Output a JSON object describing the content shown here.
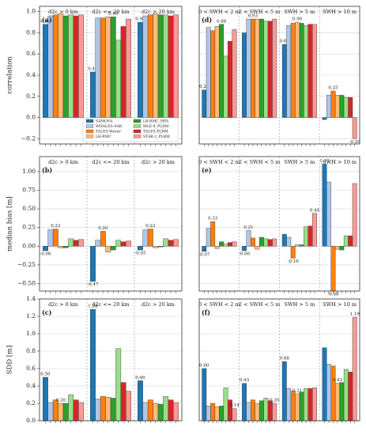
{
  "chart_data": [
    {
      "type": "bar",
      "label": "(a)",
      "ylabel": "correlation",
      "legend": "lower center",
      "categories": [
        "d2c > 0 km",
        "d2c <= 20 km",
        "d2c > 20 km"
      ],
      "ylim": [
        -0.25,
        1.05
      ],
      "yticks": [
        {
          "value": -0.2,
          "label": "−0.2"
        },
        {
          "value": 0,
          "label": "0.0"
        },
        0.2,
        0.4,
        0.6,
        0.8,
        {
          "value": 1,
          "label": "1.0"
        }
      ],
      "series": [
        {
          "name": "SAMOSA",
          "color": "#1f77b4",
          "values": [
            0.88,
            0.43,
            0.9
          ],
          "value_labels": [
            "0.88",
            "0.43",
            "0.90"
          ]
        },
        {
          "name": "WHALES-SAR",
          "color": "#aec7e8",
          "values": [
            0.96,
            0.94,
            0.96
          ]
        },
        {
          "name": "TALES-Waver",
          "color": "#ff7f0e",
          "values": [
            0.97,
            0.94,
            0.97
          ]
        },
        {
          "name": "LR-RMC",
          "color": "#ffbb78",
          "values": [
            0.98,
            0.95,
            0.98
          ]
        },
        {
          "name": "LR-RMC_HFA",
          "color": "#2ca02c",
          "values": [
            0.96,
            0.95,
            0.97
          ],
          "value_labels": [
            null,
            "0.95",
            null
          ]
        },
        {
          "name": "MLE-4_PLRM",
          "color": "#98df8a",
          "values": [
            0.97,
            0.73,
            0.97
          ]
        },
        {
          "name": "TALES-PLRM",
          "color": "#d62728",
          "values": [
            0.96,
            0.86,
            0.96
          ]
        },
        {
          "name": "STAR-2_PLRM",
          "color": "#ff9896",
          "values": [
            0.97,
            0.93,
            0.97
          ]
        }
      ]
    },
    {
      "type": "bar",
      "label": "(d)",
      "categories": [
        "0 < SWH < 2 m",
        "2 < SWH < 5 m",
        "SWH > 5 m",
        "SWH > 10 m"
      ],
      "ylim": [
        -0.25,
        1.05
      ],
      "yticks": [
        -0.2,
        0,
        0.2,
        0.4,
        0.6,
        0.8,
        1
      ],
      "series": [
        {
          "color": "#1f77b4",
          "values": [
            0.26,
            0.8,
            0.69,
            -0.02
          ],
          "value_labels": [
            "0.26",
            null,
            "0.69",
            null
          ]
        },
        {
          "color": "#aec7e8",
          "values": [
            0.85,
            0.93,
            0.87,
            0.21
          ]
        },
        {
          "color": "#ff7f0e",
          "values": [
            0.82,
            0.93,
            0.89,
            0.25
          ],
          "value_labels": [
            null,
            "0.93",
            null,
            "0.25"
          ]
        },
        {
          "color": "#ffbb78",
          "values": [
            0.86,
            0.93,
            0.9,
            0.21
          ],
          "value_labels": [
            null,
            null,
            "0.90",
            null
          ]
        },
        {
          "color": "#2ca02c",
          "values": [
            0.88,
            0.93,
            0.89,
            0.21
          ],
          "value_labels": [
            "0.88",
            null,
            null,
            null
          ]
        },
        {
          "color": "#98df8a",
          "values": [
            0.58,
            0.91,
            0.87,
            0.19
          ]
        },
        {
          "color": "#d62728",
          "values": [
            0.72,
            0.91,
            0.88,
            0.19
          ]
        },
        {
          "color": "#ff9896",
          "values": [
            0.83,
            0.93,
            0.88,
            -0.2
          ],
          "value_labels": [
            null,
            null,
            null,
            "-0.20"
          ]
        }
      ]
    },
    {
      "type": "bar",
      "label": "(b)",
      "ylabel": "median bias [m]",
      "categories": [
        "d2c > 0 km",
        "d2c <= 20 km",
        "d2c > 20 km"
      ],
      "ylim": [
        -0.6,
        1.2
      ],
      "yticks": [
        {
          "value": -0.5,
          "label": "−0.50"
        },
        {
          "value": -0.25,
          "label": "−0.25"
        },
        {
          "value": 0,
          "label": "0.00"
        },
        0.25,
        {
          "value": 0.5,
          "label": "0.50"
        },
        0.75,
        {
          "value": 1,
          "label": "1.00"
        }
      ],
      "series": [
        {
          "color": "#1f77b4",
          "values": [
            -0.06,
            -0.47,
            -0.05
          ],
          "value_labels": [
            "-0.06",
            "-0.47",
            "-0.05"
          ]
        },
        {
          "color": "#aec7e8",
          "values": [
            0.22,
            0.08,
            0.22
          ]
        },
        {
          "color": "#ff7f0e",
          "values": [
            0.23,
            0.2,
            0.23
          ],
          "value_labels": [
            "0.23",
            "0.20",
            "0.23"
          ]
        },
        {
          "color": "#ffbb78",
          "values": [
            -0.02,
            -0.08,
            -0.02
          ]
        },
        {
          "color": "#2ca02c",
          "values": [
            -0.02,
            -0.05,
            -0.01
          ]
        },
        {
          "color": "#98df8a",
          "values": [
            0.1,
            0.08,
            0.1
          ]
        },
        {
          "color": "#d62728",
          "values": [
            0.08,
            0.06,
            0.08
          ]
        },
        {
          "color": "#ff9896",
          "values": [
            0.09,
            0.07,
            0.09
          ]
        }
      ]
    },
    {
      "type": "bar",
      "label": "(e)",
      "categories": [
        "0 < SWH < 2 m",
        "2 < SWH < 5 m",
        "SWH > 5 m",
        "SWH > 10 m"
      ],
      "ylim": [
        -0.6,
        1.2
      ],
      "yticks": [
        -0.5,
        -0.25,
        0,
        0.25,
        0.5,
        0.75,
        1
      ],
      "series": [
        {
          "color": "#1f77b4",
          "values": [
            -0.07,
            -0.06,
            0.16,
            1.1
          ],
          "value_labels": [
            "-0.07",
            "-0.06",
            null,
            "1.10"
          ]
        },
        {
          "color": "#aec7e8",
          "values": [
            0.24,
            0.21,
            0.12,
            0.86
          ],
          "value_labels": [
            null,
            "0.21",
            null,
            null
          ]
        },
        {
          "color": "#ff7f0e",
          "values": [
            0.33,
            0.11,
            -0.16,
            -0.6
          ],
          "value_labels": [
            "0.33",
            null,
            "-0.16",
            "-0.60"
          ]
        },
        {
          "color": "#ffbb78",
          "values": [
            -0.03,
            -0.04,
            0.02,
            -0.04
          ]
        },
        {
          "color": "#2ca02c",
          "values": [
            0.06,
            0.12,
            0.02,
            -0.05
          ]
        },
        {
          "color": "#98df8a",
          "values": [
            0.03,
            0.1,
            0.26,
            0.14
          ]
        },
        {
          "color": "#d62728",
          "values": [
            0.05,
            0.09,
            0.27,
            0.14
          ]
        },
        {
          "color": "#ff9896",
          "values": [
            0.06,
            0.1,
            0.44,
            0.84
          ],
          "value_labels": [
            null,
            null,
            "0.44",
            null
          ]
        }
      ]
    },
    {
      "type": "bar",
      "label": "(c)",
      "ylabel": "SDD [m]",
      "categories": [
        "d2c > 0 km",
        "d2c <= 20 km",
        "d2c > 20 km"
      ],
      "ylim": [
        0,
        1.4
      ],
      "yticks": [
        {
          "value": 0,
          "label": "0.0"
        },
        0.2,
        0.4,
        0.6,
        0.8,
        {
          "value": 1,
          "label": "1.0"
        },
        1.2,
        1.4
      ],
      "series": [
        {
          "color": "#1f77b4",
          "values": [
            0.5,
            1.28,
            0.46
          ],
          "value_labels": [
            "0.50",
            "1.28",
            "0.46"
          ]
        },
        {
          "color": "#aec7e8",
          "values": [
            0.21,
            0.25,
            0.21
          ]
        },
        {
          "color": "#ff7f0e",
          "values": [
            0.24,
            0.28,
            0.24
          ]
        },
        {
          "color": "#ffbb78",
          "values": [
            0.2,
            0.27,
            0.2
          ],
          "value_labels": [
            "0.20",
            null,
            null
          ]
        },
        {
          "color": "#2ca02c",
          "values": [
            0.2,
            0.26,
            0.19
          ]
        },
        {
          "color": "#98df8a",
          "values": [
            0.3,
            0.83,
            0.28
          ]
        },
        {
          "color": "#d62728",
          "values": [
            0.24,
            0.44,
            0.24
          ]
        },
        {
          "color": "#ff9896",
          "values": [
            0.21,
            0.34,
            0.21
          ]
        }
      ]
    },
    {
      "type": "bar",
      "label": "(f)",
      "categories": [
        "0 < SWH < 2 m",
        "2 < SWH < 5 m",
        "SWH > 5 m",
        "SWH > 10 m"
      ],
      "ylim": [
        0,
        1.4
      ],
      "yticks": [
        0,
        0.2,
        0.4,
        0.6,
        0.8,
        1,
        1.2,
        1.4
      ],
      "series": [
        {
          "color": "#1f77b4",
          "values": [
            0.6,
            0.43,
            0.68,
            0.84
          ],
          "value_labels": [
            "0.60",
            "0.43",
            "0.68",
            null
          ]
        },
        {
          "color": "#aec7e8",
          "values": [
            0.17,
            0.21,
            0.37,
            0.65
          ]
        },
        {
          "color": "#ff7f0e",
          "values": [
            0.2,
            0.24,
            0.34,
            0.63
          ]
        },
        {
          "color": "#ffbb78",
          "values": [
            0.16,
            0.2,
            0.31,
            0.43
          ],
          "value_labels": [
            null,
            null,
            "0.31",
            "0.43"
          ]
        },
        {
          "color": "#2ca02c",
          "values": [
            0.17,
            0.23,
            0.33,
            0.44
          ]
        },
        {
          "color": "#98df8a",
          "values": [
            0.38,
            0.26,
            0.37,
            0.59
          ]
        },
        {
          "color": "#d62728",
          "values": [
            0.24,
            0.23,
            0.37,
            0.56
          ]
        },
        {
          "color": "#ff9896",
          "values": [
            0.14,
            0.2,
            0.38,
            1.19
          ],
          "value_labels": [
            "0.14",
            "0.20",
            null,
            "1.19"
          ]
        }
      ]
    }
  ]
}
